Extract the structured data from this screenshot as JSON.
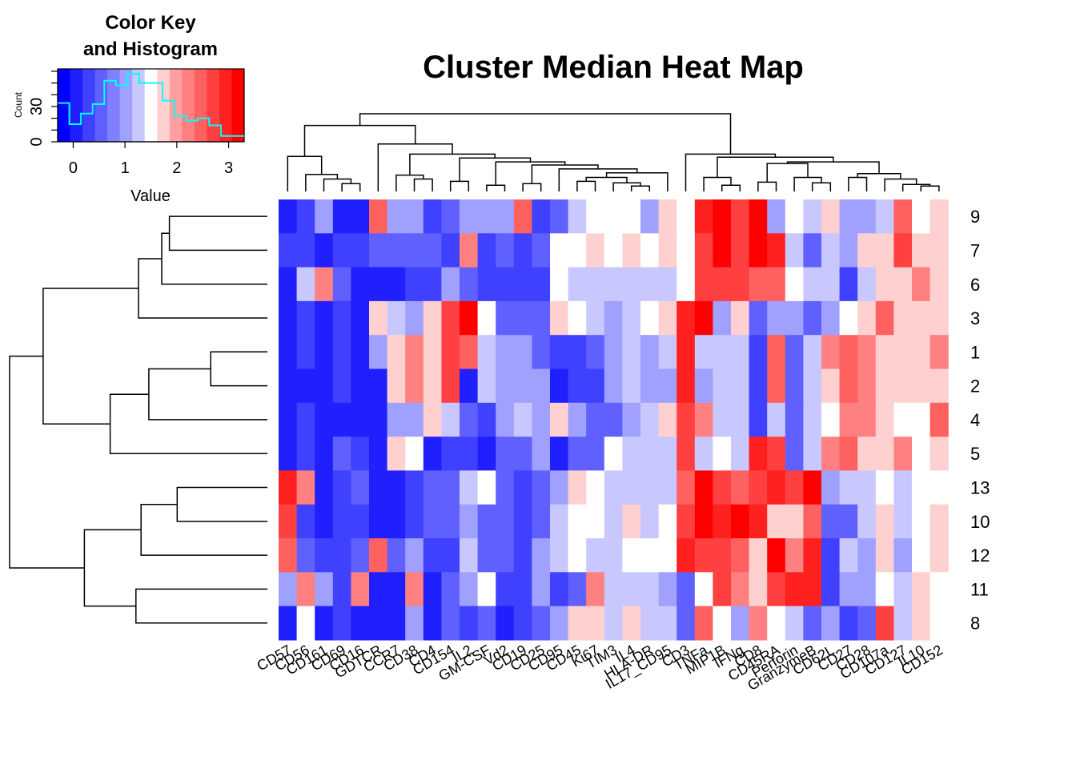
{
  "chart_data": {
    "type": "heatmap",
    "title": "Cluster Median Heat Map",
    "columns": [
      "CD57",
      "CD56",
      "CD161",
      "CD69",
      "CD16",
      "GDTCR",
      "CCR7",
      "CD38",
      "CD4",
      "CD154",
      "IL2",
      "GM-CSF",
      "Vd2",
      "CD19",
      "CD25",
      "CD95",
      "CD45",
      "Ki67",
      "TIM3",
      "IL4",
      "HLA-DR",
      "IL17_CD95",
      "CD3",
      "TNFa",
      "MIP1B",
      "IFNg",
      "CD8",
      "CD45RA",
      "Perforin",
      "GranzymeB",
      "CD62L",
      "CD27",
      "CD28",
      "CD107a",
      "CD127",
      "IL10",
      "CD152"
    ],
    "rows": [
      "9",
      "7",
      "6",
      "3",
      "1",
      "2",
      "4",
      "5",
      "13",
      "10",
      "12",
      "11",
      "8"
    ],
    "values": [
      [
        0.0,
        0.4,
        0.9,
        0.1,
        0.1,
        2.4,
        0.9,
        0.9,
        0.2,
        0.6,
        0.9,
        0.9,
        0.9,
        2.4,
        0.4,
        0.6,
        1.2,
        1.5,
        1.5,
        1.5,
        0.9,
        1.8,
        1.5,
        3.0,
        3.2,
        2.8,
        3.2,
        0.9,
        1.5,
        1.2,
        1.8,
        0.9,
        0.9,
        1.2,
        2.4,
        1.5,
        1.8
      ],
      [
        0.2,
        0.4,
        0.0,
        0.2,
        0.2,
        0.6,
        0.6,
        0.6,
        0.6,
        0.4,
        2.1,
        0.4,
        0.6,
        0.4,
        0.6,
        1.5,
        1.5,
        1.8,
        1.5,
        1.8,
        1.5,
        1.8,
        1.5,
        2.7,
        3.2,
        2.7,
        3.2,
        3.0,
        1.2,
        0.6,
        1.2,
        0.9,
        1.8,
        1.8,
        2.7,
        1.8,
        1.8
      ],
      [
        0.0,
        1.2,
        2.1,
        0.6,
        0.1,
        0.0,
        0.0,
        0.3,
        0.4,
        0.9,
        0.6,
        0.4,
        0.4,
        0.4,
        0.4,
        1.5,
        1.2,
        1.2,
        1.2,
        1.2,
        1.2,
        1.2,
        1.5,
        2.7,
        2.7,
        2.7,
        2.4,
        2.4,
        1.5,
        1.2,
        1.2,
        0.4,
        1.2,
        1.8,
        1.8,
        2.1,
        1.8
      ],
      [
        0.0,
        0.4,
        0.1,
        0.2,
        0.1,
        1.8,
        1.2,
        0.9,
        1.8,
        2.7,
        3.3,
        1.5,
        0.6,
        0.6,
        0.6,
        1.8,
        1.5,
        1.2,
        0.9,
        1.2,
        1.5,
        1.8,
        2.9,
        3.2,
        0.9,
        1.8,
        0.6,
        0.9,
        0.9,
        0.6,
        0.9,
        1.5,
        1.8,
        2.4,
        1.8,
        1.8,
        1.8
      ],
      [
        0.0,
        0.4,
        0.0,
        0.2,
        0.0,
        0.9,
        1.8,
        2.1,
        1.8,
        2.7,
        2.4,
        1.2,
        0.9,
        0.9,
        0.6,
        0.2,
        0.2,
        0.6,
        0.9,
        1.2,
        0.9,
        1.2,
        2.9,
        1.2,
        1.2,
        1.2,
        0.4,
        2.4,
        0.6,
        1.2,
        2.1,
        2.4,
        2.1,
        1.8,
        1.8,
        1.8,
        2.1
      ],
      [
        0.0,
        0.1,
        0.0,
        0.2,
        0.1,
        0.0,
        1.8,
        2.1,
        1.8,
        2.7,
        0.1,
        1.2,
        0.9,
        0.9,
        0.9,
        0.1,
        0.3,
        0.4,
        0.9,
        1.2,
        0.9,
        0.9,
        2.9,
        0.9,
        1.2,
        1.2,
        0.4,
        2.4,
        0.6,
        1.2,
        1.8,
        2.4,
        2.1,
        1.8,
        1.8,
        1.8,
        1.8
      ],
      [
        0.0,
        0.4,
        0.1,
        0.1,
        0.0,
        0.0,
        0.9,
        0.9,
        1.8,
        1.2,
        0.6,
        0.4,
        0.9,
        1.2,
        0.9,
        1.8,
        0.9,
        0.6,
        0.6,
        0.9,
        1.2,
        1.8,
        2.7,
        2.1,
        1.2,
        1.2,
        0.4,
        1.2,
        0.6,
        1.2,
        1.5,
        2.1,
        2.1,
        1.8,
        1.5,
        1.5,
        2.4
      ],
      [
        0.0,
        0.2,
        0.0,
        0.6,
        0.2,
        0.0,
        1.8,
        1.5,
        0.0,
        0.4,
        0.4,
        0.1,
        0.6,
        0.6,
        0.9,
        0.1,
        0.6,
        0.6,
        1.5,
        1.2,
        1.2,
        1.2,
        2.7,
        1.2,
        1.5,
        1.2,
        2.9,
        2.7,
        0.6,
        1.2,
        2.1,
        2.4,
        1.8,
        1.8,
        2.1,
        1.5,
        1.8
      ],
      [
        2.9,
        2.1,
        0.0,
        0.4,
        0.6,
        0.0,
        0.0,
        0.4,
        0.6,
        0.6,
        1.2,
        1.5,
        0.6,
        0.4,
        0.6,
        0.9,
        1.8,
        1.5,
        1.2,
        1.2,
        1.2,
        1.2,
        2.4,
        3.2,
        2.7,
        2.4,
        2.7,
        2.9,
        2.7,
        3.2,
        0.9,
        1.2,
        1.2,
        1.5,
        1.2,
        1.5,
        1.5
      ],
      [
        2.7,
        0.2,
        0.0,
        0.2,
        0.2,
        0.0,
        0.0,
        0.2,
        0.6,
        0.6,
        0.9,
        0.6,
        0.6,
        0.4,
        0.6,
        1.2,
        1.5,
        1.5,
        1.2,
        1.8,
        1.2,
        1.5,
        2.7,
        3.2,
        2.9,
        3.3,
        2.9,
        1.8,
        1.8,
        2.4,
        0.6,
        0.6,
        1.2,
        1.8,
        1.2,
        1.5,
        1.8
      ],
      [
        2.4,
        0.6,
        0.2,
        0.2,
        0.6,
        2.4,
        0.6,
        0.9,
        0.4,
        0.4,
        1.2,
        0.6,
        0.6,
        0.4,
        0.9,
        1.2,
        1.5,
        1.2,
        1.2,
        1.5,
        1.5,
        1.5,
        2.9,
        2.7,
        2.7,
        2.4,
        1.8,
        3.2,
        2.1,
        3.0,
        0.4,
        1.2,
        0.9,
        1.8,
        0.9,
        1.5,
        1.8
      ],
      [
        0.9,
        2.1,
        0.9,
        0.2,
        2.1,
        0.0,
        0.0,
        2.1,
        0.1,
        0.6,
        0.9,
        1.5,
        0.2,
        0.2,
        0.9,
        0.4,
        0.6,
        2.1,
        1.2,
        1.2,
        1.2,
        0.9,
        0.6,
        1.5,
        2.7,
        2.1,
        1.8,
        2.7,
        2.9,
        2.9,
        0.4,
        0.9,
        0.9,
        1.5,
        1.2,
        1.8,
        1.5
      ],
      [
        0.0,
        1.5,
        0.0,
        0.2,
        0.1,
        0.0,
        0.0,
        0.9,
        0.0,
        0.6,
        0.4,
        0.6,
        0.0,
        0.2,
        0.6,
        0.9,
        1.8,
        1.8,
        1.2,
        1.8,
        1.2,
        1.2,
        0.6,
        2.4,
        1.5,
        0.9,
        2.1,
        1.5,
        1.2,
        0.6,
        0.9,
        0.4,
        0.6,
        2.7,
        1.2,
        1.8,
        1.5
      ]
    ],
    "color_key": {
      "title": "Color Key\nand Histogram",
      "xlabel": "Value",
      "ylabel": "Count",
      "xticks": [
        "0",
        "1",
        "2",
        "3"
      ],
      "yticks": [
        "0",
        "30"
      ],
      "range": [
        -0.3,
        3.3
      ],
      "hist_counts": [
        33,
        15,
        24,
        32,
        52,
        48,
        58,
        50,
        50,
        35,
        22,
        18,
        20,
        14,
        5,
        5
      ],
      "hist_max": 62,
      "colors": [
        "#0000ff",
        "#2020ff",
        "#4040ff",
        "#6060ff",
        "#8080ff",
        "#a0a0ff",
        "#c8c8ff",
        "#ffffff",
        "#ffd0d0",
        "#ffa0a0",
        "#ff8080",
        "#ff6060",
        "#ff4040",
        "#ff2020",
        "#ff0000"
      ]
    },
    "grid": false,
    "legend": "top-left"
  },
  "colors": {
    "low": "#0000ff",
    "mid": "#ffffff",
    "high": "#ff0000",
    "histogram_line": "#00ffff"
  }
}
